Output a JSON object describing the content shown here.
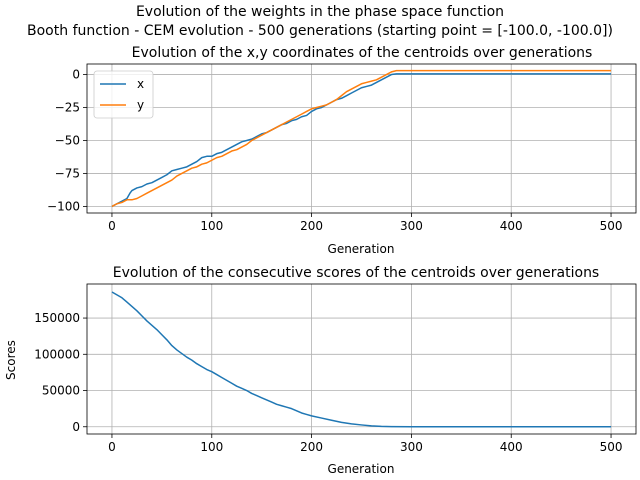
{
  "figure": {
    "suptitle_line1": "Evolution of the weights in the phase space  function",
    "suptitle_line2": "Booth function - CEM evolution - 500 generations (starting point = [-100.0, -100.0])"
  },
  "chart_data": [
    {
      "type": "line",
      "title": "Evolution of the x,y coordinates of the centroids over generations",
      "xlabel": "Generation",
      "ylabel": "",
      "xlim": [
        -25,
        525
      ],
      "ylim": [
        -105,
        8
      ],
      "xticks": [
        0,
        100,
        200,
        300,
        400,
        500
      ],
      "yticks": [
        -100,
        -75,
        -50,
        -25,
        0
      ],
      "grid": true,
      "legend": "upper-left",
      "series": [
        {
          "name": "x",
          "color": "#1f77b4",
          "points": [
            [
              0,
              -100
            ],
            [
              5,
              -98
            ],
            [
              10,
              -96
            ],
            [
              15,
              -94
            ],
            [
              18,
              -90
            ],
            [
              20,
              -88
            ],
            [
              25,
              -86
            ],
            [
              30,
              -85
            ],
            [
              35,
              -83
            ],
            [
              40,
              -82
            ],
            [
              45,
              -80
            ],
            [
              50,
              -78
            ],
            [
              55,
              -76
            ],
            [
              60,
              -73
            ],
            [
              65,
              -72
            ],
            [
              70,
              -71
            ],
            [
              75,
              -70
            ],
            [
              80,
              -68
            ],
            [
              85,
              -66
            ],
            [
              90,
              -63
            ],
            [
              95,
              -62
            ],
            [
              100,
              -62
            ],
            [
              105,
              -60
            ],
            [
              110,
              -59
            ],
            [
              115,
              -57
            ],
            [
              120,
              -55
            ],
            [
              125,
              -53
            ],
            [
              130,
              -51
            ],
            [
              135,
              -50
            ],
            [
              140,
              -49
            ],
            [
              145,
              -47
            ],
            [
              150,
              -45
            ],
            [
              155,
              -44
            ],
            [
              160,
              -42
            ],
            [
              165,
              -40
            ],
            [
              170,
              -38
            ],
            [
              175,
              -37
            ],
            [
              180,
              -35
            ],
            [
              185,
              -34
            ],
            [
              190,
              -32
            ],
            [
              195,
              -31
            ],
            [
              200,
              -28
            ],
            [
              205,
              -26
            ],
            [
              210,
              -25
            ],
            [
              215,
              -23
            ],
            [
              220,
              -21
            ],
            [
              225,
              -19
            ],
            [
              230,
              -18
            ],
            [
              235,
              -16
            ],
            [
              240,
              -14
            ],
            [
              245,
              -12
            ],
            [
              250,
              -10
            ],
            [
              255,
              -9
            ],
            [
              260,
              -8
            ],
            [
              265,
              -6
            ],
            [
              270,
              -4
            ],
            [
              275,
              -2
            ],
            [
              280,
              0
            ],
            [
              285,
              0.5
            ],
            [
              300,
              0.5
            ],
            [
              350,
              0.5
            ],
            [
              400,
              0.5
            ],
            [
              450,
              0.5
            ],
            [
              500,
              0.5
            ]
          ]
        },
        {
          "name": "y",
          "color": "#ff7f0e",
          "points": [
            [
              0,
              -100
            ],
            [
              5,
              -98
            ],
            [
              10,
              -97
            ],
            [
              15,
              -95
            ],
            [
              20,
              -95
            ],
            [
              25,
              -94
            ],
            [
              30,
              -92
            ],
            [
              35,
              -90
            ],
            [
              40,
              -88
            ],
            [
              45,
              -86
            ],
            [
              50,
              -84
            ],
            [
              55,
              -82
            ],
            [
              60,
              -80
            ],
            [
              65,
              -77
            ],
            [
              70,
              -75
            ],
            [
              75,
              -73
            ],
            [
              80,
              -71
            ],
            [
              85,
              -70
            ],
            [
              90,
              -68
            ],
            [
              95,
              -67
            ],
            [
              100,
              -65
            ],
            [
              105,
              -63
            ],
            [
              110,
              -62
            ],
            [
              115,
              -60
            ],
            [
              120,
              -58
            ],
            [
              125,
              -57
            ],
            [
              130,
              -55
            ],
            [
              135,
              -53
            ],
            [
              140,
              -50
            ],
            [
              145,
              -48
            ],
            [
              150,
              -46
            ],
            [
              155,
              -44
            ],
            [
              160,
              -42
            ],
            [
              165,
              -40
            ],
            [
              170,
              -38
            ],
            [
              175,
              -36
            ],
            [
              180,
              -34
            ],
            [
              185,
              -32
            ],
            [
              190,
              -30
            ],
            [
              195,
              -28
            ],
            [
              200,
              -26
            ],
            [
              205,
              -25
            ],
            [
              210,
              -24
            ],
            [
              215,
              -23
            ],
            [
              220,
              -21
            ],
            [
              225,
              -19
            ],
            [
              230,
              -16
            ],
            [
              235,
              -13
            ],
            [
              240,
              -11
            ],
            [
              245,
              -9
            ],
            [
              250,
              -7
            ],
            [
              255,
              -6
            ],
            [
              260,
              -5
            ],
            [
              265,
              -4
            ],
            [
              270,
              -2
            ],
            [
              275,
              0
            ],
            [
              280,
              2
            ],
            [
              285,
              3
            ],
            [
              300,
              3
            ],
            [
              350,
              3
            ],
            [
              400,
              3
            ],
            [
              450,
              3
            ],
            [
              500,
              3
            ]
          ]
        }
      ]
    },
    {
      "type": "line",
      "title": "Evolution of the consecutive scores of the centroids over generations",
      "xlabel": "Generation",
      "ylabel": "Scores",
      "xlim": [
        -25,
        525
      ],
      "ylim": [
        -10000,
        197000
      ],
      "xticks": [
        0,
        100,
        200,
        300,
        400,
        500
      ],
      "yticks": [
        0,
        50000,
        100000,
        150000
      ],
      "grid": true,
      "series": [
        {
          "color": "#1f77b4",
          "points": [
            [
              0,
              186000
            ],
            [
              5,
              182000
            ],
            [
              10,
              178000
            ],
            [
              15,
              172000
            ],
            [
              20,
              166000
            ],
            [
              25,
              160000
            ],
            [
              30,
              153000
            ],
            [
              35,
              146000
            ],
            [
              40,
              140000
            ],
            [
              45,
              134000
            ],
            [
              50,
              127000
            ],
            [
              55,
              120000
            ],
            [
              60,
              112000
            ],
            [
              65,
              106000
            ],
            [
              70,
              101000
            ],
            [
              75,
              96000
            ],
            [
              80,
              92000
            ],
            [
              85,
              87000
            ],
            [
              90,
              83000
            ],
            [
              95,
              79000
            ],
            [
              100,
              76000
            ],
            [
              105,
              72000
            ],
            [
              110,
              68000
            ],
            [
              115,
              64000
            ],
            [
              120,
              60000
            ],
            [
              125,
              56000
            ],
            [
              130,
              53000
            ],
            [
              135,
              50000
            ],
            [
              140,
              46000
            ],
            [
              145,
              43000
            ],
            [
              150,
              40000
            ],
            [
              155,
              37000
            ],
            [
              160,
              34000
            ],
            [
              165,
              31000
            ],
            [
              170,
              29000
            ],
            [
              175,
              27000
            ],
            [
              180,
              25000
            ],
            [
              185,
              22000
            ],
            [
              190,
              19000
            ],
            [
              195,
              17000
            ],
            [
              200,
              15000
            ],
            [
              210,
              12000
            ],
            [
              220,
              9000
            ],
            [
              230,
              6000
            ],
            [
              240,
              4000
            ],
            [
              250,
              2500
            ],
            [
              260,
              1200
            ],
            [
              270,
              500
            ],
            [
              280,
              150
            ],
            [
              300,
              50
            ],
            [
              350,
              30
            ],
            [
              400,
              20
            ],
            [
              450,
              20
            ],
            [
              500,
              20
            ]
          ]
        }
      ]
    }
  ]
}
